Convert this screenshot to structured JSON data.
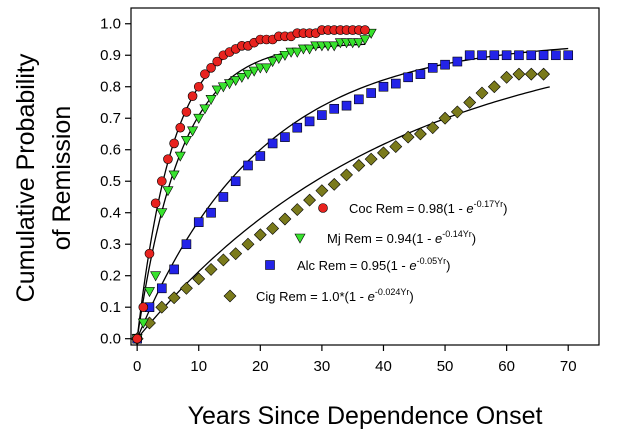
{
  "chart_data": {
    "type": "scatter",
    "xlabel": "Years Since Dependence Onset",
    "ylabel": [
      "Cumulative Probability",
      "of Remission"
    ],
    "xlim": [
      -1,
      75
    ],
    "ylim": [
      -0.02,
      1.05
    ],
    "x_ticks": [
      "0",
      "10",
      "20",
      "30",
      "40",
      "50",
      "60",
      "70"
    ],
    "y_ticks": [
      "0.0",
      "0.1",
      "0.2",
      "0.3",
      "0.4",
      "0.5",
      "0.6",
      "0.7",
      "0.8",
      "0.9",
      "1.0"
    ],
    "grid": false,
    "legend_position": "center-right",
    "series": [
      {
        "marker": "circle",
        "color": "#e8231f",
        "legend": {
          "prefix": "Coc Rem = 0.98(1 - ",
          "e": "e",
          "exp": "-0.17Yr",
          "suffix": ")"
        },
        "fit": {
          "a": 0.98,
          "k": 0.17,
          "xmax": 37
        },
        "x": [
          0,
          1,
          2,
          3,
          4,
          5,
          6,
          7,
          8,
          9,
          10,
          11,
          12,
          13,
          14,
          15,
          16,
          17,
          18,
          19,
          20,
          21,
          22,
          23,
          24,
          25,
          26,
          27,
          28,
          29,
          30,
          31,
          32,
          33,
          34,
          35,
          36,
          37
        ],
        "y": [
          0.0,
          0.1,
          0.27,
          0.43,
          0.5,
          0.57,
          0.62,
          0.67,
          0.72,
          0.77,
          0.8,
          0.84,
          0.86,
          0.88,
          0.9,
          0.91,
          0.92,
          0.93,
          0.93,
          0.94,
          0.95,
          0.95,
          0.95,
          0.96,
          0.96,
          0.96,
          0.97,
          0.97,
          0.97,
          0.97,
          0.98,
          0.98,
          0.98,
          0.98,
          0.98,
          0.98,
          0.98,
          0.98
        ]
      },
      {
        "marker": "triangle-down",
        "color": "#38e22e",
        "legend": {
          "prefix": "Mj Rem = 0.94(1 - ",
          "e": "e",
          "exp": "-0.14Yr",
          "suffix": ")"
        },
        "fit": {
          "a": 0.94,
          "k": 0.14,
          "xmax": 37
        },
        "x": [
          0,
          1,
          2,
          3,
          4,
          5,
          6,
          7,
          8,
          9,
          10,
          11,
          12,
          13,
          14,
          15,
          16,
          17,
          18,
          19,
          20,
          21,
          22,
          23,
          24,
          25,
          26,
          27,
          28,
          29,
          30,
          31,
          32,
          33,
          34,
          35,
          36,
          37,
          38
        ],
        "y": [
          0.0,
          0.05,
          0.15,
          0.2,
          0.4,
          0.47,
          0.52,
          0.58,
          0.63,
          0.66,
          0.7,
          0.73,
          0.76,
          0.79,
          0.8,
          0.81,
          0.82,
          0.83,
          0.84,
          0.85,
          0.86,
          0.86,
          0.88,
          0.89,
          0.9,
          0.91,
          0.91,
          0.92,
          0.92,
          0.93,
          0.93,
          0.93,
          0.93,
          0.94,
          0.94,
          0.94,
          0.94,
          0.95,
          0.97
        ]
      },
      {
        "marker": "square",
        "color": "#2323e8",
        "legend": {
          "prefix": "Alc Rem = 0.95(1 - ",
          "e": "e",
          "exp": "-0.05Yr",
          "suffix": ")"
        },
        "fit": {
          "a": 0.95,
          "k": 0.05,
          "xmax": 70
        },
        "x": [
          0,
          2,
          4,
          6,
          8,
          10,
          12,
          14,
          16,
          18,
          20,
          22,
          24,
          26,
          28,
          30,
          32,
          34,
          36,
          38,
          40,
          42,
          44,
          46,
          48,
          50,
          52,
          54,
          56,
          58,
          60,
          62,
          64,
          66,
          68,
          70
        ],
        "y": [
          0.0,
          0.1,
          0.16,
          0.22,
          0.3,
          0.37,
          0.4,
          0.45,
          0.5,
          0.55,
          0.58,
          0.62,
          0.64,
          0.67,
          0.69,
          0.71,
          0.73,
          0.74,
          0.76,
          0.78,
          0.8,
          0.81,
          0.83,
          0.84,
          0.86,
          0.87,
          0.88,
          0.9,
          0.9,
          0.9,
          0.9,
          0.9,
          0.9,
          0.9,
          0.9,
          0.9
        ]
      },
      {
        "marker": "diamond",
        "color": "#7a7a1c",
        "legend": {
          "prefix": "Cig Rem = 1.0*(1 - ",
          "e": "e",
          "exp": "-0.024Yr",
          "suffix": ")"
        },
        "fit": {
          "a": 1.0,
          "k": 0.024,
          "xmax": 67
        },
        "x": [
          0,
          2,
          4,
          6,
          8,
          10,
          12,
          14,
          16,
          18,
          20,
          22,
          24,
          26,
          28,
          30,
          32,
          34,
          36,
          38,
          40,
          42,
          44,
          46,
          48,
          50,
          52,
          54,
          56,
          58,
          60,
          62,
          64,
          66
        ],
        "y": [
          0.0,
          0.05,
          0.1,
          0.13,
          0.16,
          0.19,
          0.22,
          0.25,
          0.27,
          0.3,
          0.33,
          0.35,
          0.38,
          0.41,
          0.44,
          0.47,
          0.49,
          0.52,
          0.55,
          0.57,
          0.59,
          0.61,
          0.64,
          0.65,
          0.67,
          0.7,
          0.72,
          0.75,
          0.78,
          0.8,
          0.83,
          0.84,
          0.84,
          0.84
        ]
      }
    ]
  }
}
